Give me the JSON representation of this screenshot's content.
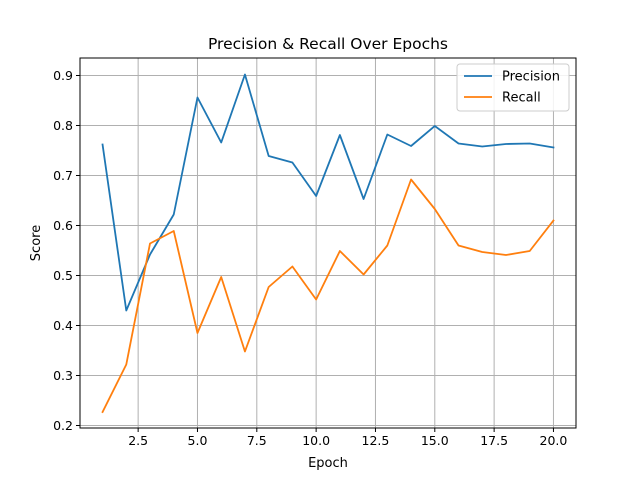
{
  "chart_data": {
    "type": "line",
    "title": "Precision & Recall Over Epochs",
    "xlabel": "Epoch",
    "ylabel": "Score",
    "xlim": [
      0.05,
      20.95
    ],
    "ylim": [
      0.195,
      0.935
    ],
    "x_ticks": [
      2.5,
      5.0,
      7.5,
      10.0,
      12.5,
      15.0,
      17.5,
      20.0
    ],
    "y_ticks": [
      0.2,
      0.3,
      0.4,
      0.5,
      0.6,
      0.7,
      0.8,
      0.9
    ],
    "grid": true,
    "legend_position": "top-right",
    "x": [
      1,
      2,
      3,
      4,
      5,
      6,
      7,
      8,
      9,
      10,
      11,
      12,
      13,
      14,
      15,
      16,
      17,
      18,
      19,
      20
    ],
    "series": [
      {
        "name": "Precision",
        "color": "#1f77b4",
        "values": [
          0.762,
          0.43,
          0.542,
          0.622,
          0.856,
          0.766,
          0.902,
          0.739,
          0.726,
          0.659,
          0.781,
          0.653,
          0.782,
          0.759,
          0.799,
          0.764,
          0.758,
          0.763,
          0.764,
          0.756
        ]
      },
      {
        "name": "Recall",
        "color": "#ff7f0e",
        "values": [
          0.227,
          0.322,
          0.564,
          0.589,
          0.385,
          0.497,
          0.348,
          0.477,
          0.518,
          0.452,
          0.549,
          0.502,
          0.56,
          0.692,
          0.633,
          0.56,
          0.547,
          0.541,
          0.549,
          0.61
        ]
      }
    ]
  }
}
